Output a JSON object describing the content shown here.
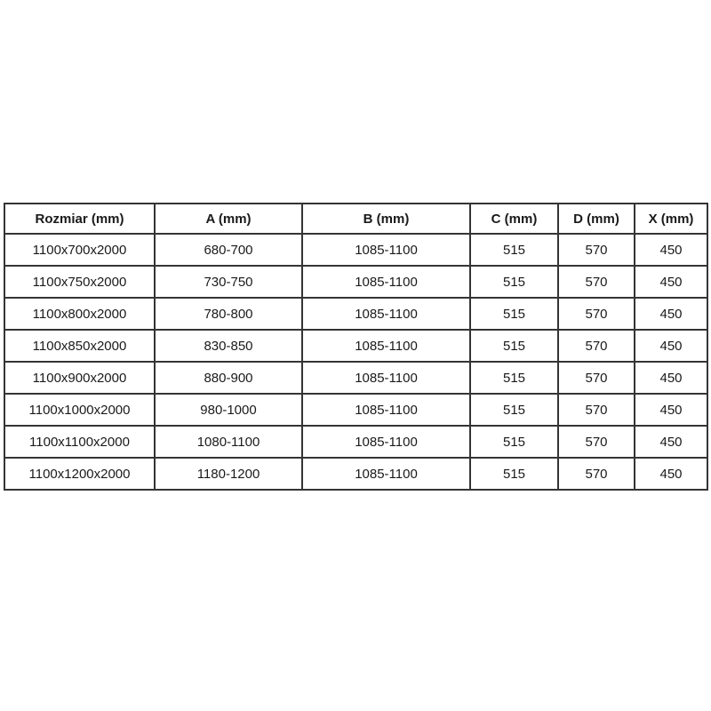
{
  "page": {
    "background_color": "#ffffff",
    "border_color": "#343434",
    "text_color": "#1a1a1a"
  },
  "table": {
    "headers": [
      "Rozmiar (mm)",
      "A (mm)",
      "B (mm)",
      "C (mm)",
      "D (mm)",
      "X (mm)"
    ],
    "rows": [
      [
        "1100x700x2000",
        "680-700",
        "1085-1100",
        "515",
        "570",
        "450"
      ],
      [
        "1100x750x2000",
        "730-750",
        "1085-1100",
        "515",
        "570",
        "450"
      ],
      [
        "1100x800x2000",
        "780-800",
        "1085-1100",
        "515",
        "570",
        "450"
      ],
      [
        "1100x850x2000",
        "830-850",
        "1085-1100",
        "515",
        "570",
        "450"
      ],
      [
        "1100x900x2000",
        "880-900",
        "1085-1100",
        "515",
        "570",
        "450"
      ],
      [
        "1100x1000x2000",
        "980-1000",
        "1085-1100",
        "515",
        "570",
        "450"
      ],
      [
        "1100x1100x2000",
        "1080-1100",
        "1085-1100",
        "515",
        "570",
        "450"
      ],
      [
        "1100x1200x2000",
        "1180-1200",
        "1085-1100",
        "515",
        "570",
        "450"
      ]
    ]
  }
}
